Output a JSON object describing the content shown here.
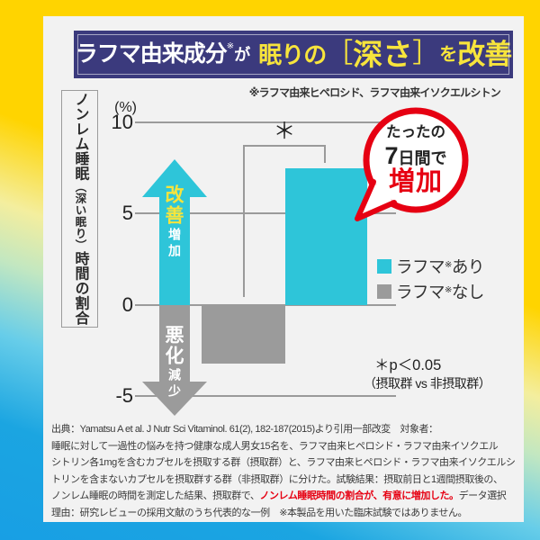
{
  "header": {
    "part1_white": "ラフマ由来成分",
    "ref_mark": "※",
    "part2_white": "が",
    "part3_yellow": "眠りの",
    "bracket_open": "［",
    "part4_yellow": "深さ",
    "bracket_close": "］",
    "part5_yellow": "を",
    "part6_yellow": "改善"
  },
  "subtitle": "※ラフマ由来ヒペロシド、ラフマ由来イソクエルシトン",
  "axis_title": {
    "main1": "ノンレム睡眠",
    "paren": "（深い眠り）",
    "main2": "時間の割合"
  },
  "chart": {
    "unit": "(%)",
    "ticks": [
      "10",
      "5",
      "0",
      "-5"
    ],
    "arrow_up_label": "改善",
    "arrow_up_sub": "増加",
    "arrow_down_label": "悪化",
    "arrow_down_sub": "減少",
    "significance_mark": "＊"
  },
  "bubble": {
    "line1": "たったの",
    "line2_number": "7",
    "line2_rest": "日間で",
    "line3": "増加"
  },
  "legend": [
    {
      "base": "ラフマ",
      "ref": "※",
      "suffix": "あり",
      "color": "#2ec5d9"
    },
    {
      "base": "ラフマ",
      "ref": "※",
      "suffix": "なし",
      "color": "#9b9b9b"
    }
  ],
  "stats_note": {
    "line1": "＊p＜0.05",
    "line2": "（摂取群 vs 非摂取群）"
  },
  "source": {
    "line1": "出典：Yamatsu A et al. J Nutr Sci Vitaminol. 61(2), 182-187(2015)より引用一部改変　対象者：",
    "line2": "睡眠に対して一過性の悩みを持つ健康な成人男女15名を、ラフマ由来ヒペロシド・ラフマ由来イソクエル",
    "line3": "シトリン各1mgを含むカプセルを摂取する群（摂取群）と、ラフマ由来ヒペロシド・ラフマ由来イソクエルシ",
    "line4": "トリンを含まないカプセルを摂取群する群（非摂取群）に分けた。試験結果：摂取前日と1週間摂取後の、",
    "line5_pre": "ノンレム睡眠の時間を測定した結果、摂取群で、",
    "line5_red": "ノンレム睡眠時間の割合が、有意に増加した。",
    "line5_post": "データ選択",
    "line6": "理由：研究レビューの採用文献のうち代表的な一例　※本製品を用いた臨床試験ではありません。"
  },
  "colors": {
    "banner_navy": "#3b3a7d",
    "highlight_yellow": "#f7e43c",
    "bar_cyan": "#2ec5d9",
    "bar_gray": "#9b9b9b",
    "accent_red": "#e60012",
    "frame_top_yellow": "#ffd400",
    "frame_bottom_blue": "#1ba5e1",
    "card_bg": "#f2f2f2"
  },
  "chart_data": {
    "type": "bar",
    "title": "ラフマ由来成分が眠りの［深さ］を改善",
    "categories": [
      "ラフマあり",
      "ラフマなし"
    ],
    "values": [
      7.5,
      -3.2
    ],
    "colors": [
      "#2ec5d9",
      "#9b9b9b"
    ],
    "unit": "%",
    "ylabel": "ノンレム睡眠（深い眠り）時間の割合 (%)",
    "ylim": [
      -5,
      10
    ],
    "yticks": [
      10,
      5,
      0,
      -5
    ],
    "grid": true,
    "legend_position": "right",
    "significance": "＊p＜0.05（摂取群 vs 非摂取群）",
    "annotation": "たったの7日間で増加"
  }
}
